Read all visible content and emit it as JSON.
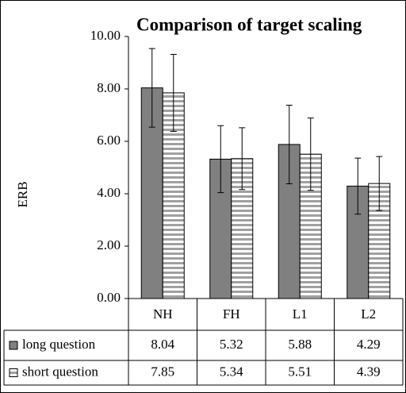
{
  "chart_data": {
    "type": "bar",
    "title": "Comparison of target scaling",
    "y_label": "ERB",
    "categories": [
      "NH",
      "FH",
      "L1",
      "L2"
    ],
    "series": [
      {
        "name": "long question",
        "color": "#808080",
        "values": [
          8.04,
          5.32,
          5.88,
          4.29
        ],
        "errors": [
          1.5,
          1.28,
          1.5,
          1.07
        ]
      },
      {
        "name": "short question",
        "color": "#a0a0a0",
        "pattern": "horizontal-stripes",
        "values": [
          7.85,
          5.34,
          5.51,
          4.39
        ],
        "errors": [
          1.47,
          1.18,
          1.38,
          1.03
        ]
      }
    ],
    "ylim": [
      0,
      10
    ],
    "yticks": [
      {
        "value": 0,
        "label": "0.00"
      },
      {
        "value": 2,
        "label": "2.00"
      },
      {
        "value": 4,
        "label": "4.00"
      },
      {
        "value": 6,
        "label": "6.00"
      },
      {
        "value": 8,
        "label": "8.00"
      },
      {
        "value": 10,
        "label": "10.00"
      }
    ],
    "grid": false,
    "data_table": true
  }
}
